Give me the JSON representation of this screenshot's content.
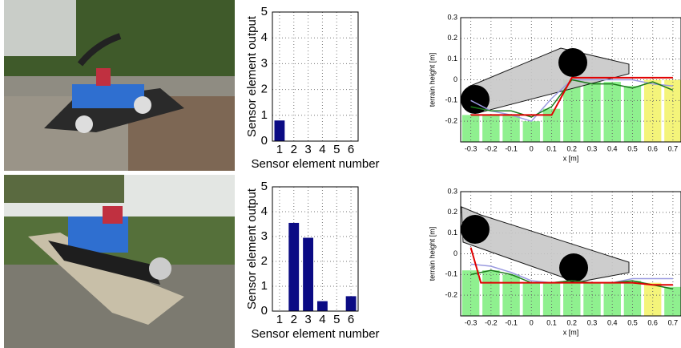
{
  "chart_data": [
    {
      "type": "bar",
      "xlabel": "Sensor element number",
      "ylabel": "Sensor element output",
      "categories": [
        1,
        2,
        3,
        4,
        5,
        6
      ],
      "values": [
        0.8,
        0,
        0,
        0,
        0,
        0
      ],
      "color": "#0b0b84",
      "ylim": [
        0,
        5
      ],
      "yticks": [
        0,
        1,
        2,
        3,
        4,
        5
      ],
      "grid": true
    },
    {
      "type": "bar",
      "xlabel": "Sensor element number",
      "ylabel": "Sensor element output",
      "categories": [
        1,
        2,
        3,
        4,
        5,
        6
      ],
      "values": [
        0,
        3.55,
        2.95,
        0.4,
        0,
        0.6
      ],
      "color": "#0b0b84",
      "ylim": [
        0,
        5
      ],
      "yticks": [
        0,
        1,
        2,
        3,
        4,
        5
      ],
      "grid": true
    },
    {
      "type": "terrain",
      "xlabel": "x [m]",
      "ylabel": "terrain height [m]",
      "xlim": [
        -0.35,
        0.74
      ],
      "ylim": [
        -0.3,
        0.3
      ],
      "xticks": [
        -0.3,
        -0.2,
        -0.1,
        0,
        0.1,
        0.2,
        0.3,
        0.4,
        0.5,
        0.6,
        0.7
      ],
      "yticks": [
        -0.2,
        -0.1,
        0,
        0.1,
        0.2,
        0.3
      ],
      "grid": true,
      "bars": {
        "x": [
          -0.3,
          -0.2,
          -0.1,
          0,
          0.1,
          0.2,
          0.3,
          0.4,
          0.5,
          0.6,
          0.7
        ],
        "values": [
          -0.17,
          -0.17,
          -0.17,
          -0.2,
          -0.14,
          0.0,
          -0.01,
          -0.01,
          -0.03,
          0.0,
          0.0
        ],
        "colors": [
          "#8ff08f",
          "#8ff08f",
          "#8ff08f",
          "#8ff08f",
          "#8ff08f",
          "#8ff08f",
          "#8ff08f",
          "#8ff08f",
          "#8ff08f",
          "#f4f47a",
          "#f4f47a"
        ]
      },
      "series": [
        {
          "color": "#9a9ae0",
          "x": [
            -0.3,
            -0.2,
            -0.1,
            0,
            0.1,
            0.2,
            0.3,
            0.4,
            0.5,
            0.6,
            0.7
          ],
          "values": [
            -0.1,
            -0.15,
            -0.17,
            -0.2,
            -0.09,
            0.0,
            0.0,
            0.0,
            0.0,
            -0.02,
            -0.03
          ]
        },
        {
          "color": "#1a7a1a",
          "x": [
            -0.3,
            -0.2,
            -0.1,
            0,
            0.1,
            0.2,
            0.3,
            0.4,
            0.5,
            0.6,
            0.7
          ],
          "values": [
            -0.13,
            -0.15,
            -0.15,
            -0.18,
            -0.13,
            0.0,
            -0.02,
            -0.02,
            -0.04,
            -0.01,
            -0.05
          ]
        },
        {
          "color": "#e00000",
          "x": [
            -0.3,
            -0.2,
            -0.1,
            0,
            0.1,
            0.2,
            0.3,
            0.4,
            0.5,
            0.6,
            0.7
          ],
          "values": [
            -0.17,
            -0.17,
            -0.17,
            -0.17,
            -0.17,
            0.01,
            0.01,
            0.01,
            0.01,
            0.01,
            0.01
          ]
        }
      ]
    },
    {
      "type": "terrain",
      "xlabel": "x [m]",
      "ylabel": "terrain height [m]",
      "xlim": [
        -0.35,
        0.74
      ],
      "ylim": [
        -0.3,
        0.3
      ],
      "xticks": [
        -0.3,
        -0.2,
        -0.1,
        0,
        0.1,
        0.2,
        0.3,
        0.4,
        0.5,
        0.6,
        0.7
      ],
      "yticks": [
        -0.2,
        -0.1,
        0,
        0.1,
        0.2,
        0.3
      ],
      "grid": true,
      "bars": {
        "x": [
          -0.3,
          -0.2,
          -0.1,
          0,
          0.1,
          0.2,
          0.3,
          0.4,
          0.5,
          0.6,
          0.7
        ],
        "values": [
          -0.08,
          -0.08,
          -0.1,
          -0.14,
          -0.14,
          -0.13,
          -0.14,
          -0.14,
          -0.13,
          -0.14,
          -0.16
        ],
        "colors": [
          "#8ff08f",
          "#8ff08f",
          "#8ff08f",
          "#8ff08f",
          "#8ff08f",
          "#8ff08f",
          "#8ff08f",
          "#8ff08f",
          "#8ff08f",
          "#f4f47a",
          "#8ff08f"
        ]
      },
      "series": [
        {
          "color": "#9a9ae0",
          "x": [
            -0.3,
            -0.2,
            -0.1,
            0,
            0.1,
            0.2,
            0.3,
            0.4,
            0.5,
            0.6,
            0.7
          ],
          "values": [
            -0.05,
            -0.06,
            -0.09,
            -0.13,
            -0.14,
            -0.13,
            -0.14,
            -0.14,
            -0.12,
            -0.12,
            -0.12
          ]
        },
        {
          "color": "#1a7a1a",
          "x": [
            -0.3,
            -0.2,
            -0.1,
            0,
            0.1,
            0.2,
            0.3,
            0.4,
            0.5,
            0.6,
            0.7
          ],
          "values": [
            -0.1,
            -0.08,
            -0.1,
            -0.14,
            -0.14,
            -0.13,
            -0.14,
            -0.14,
            -0.13,
            -0.15,
            -0.17
          ]
        },
        {
          "color": "#e00000",
          "x": [
            -0.3,
            -0.25,
            -0.1,
            0,
            0.1,
            0.2,
            0.3,
            0.4,
            0.5,
            0.6,
            0.7
          ],
          "values": [
            0.03,
            -0.14,
            -0.14,
            -0.14,
            -0.14,
            -0.14,
            -0.14,
            -0.14,
            -0.14,
            -0.15,
            -0.15
          ]
        }
      ]
    }
  ]
}
